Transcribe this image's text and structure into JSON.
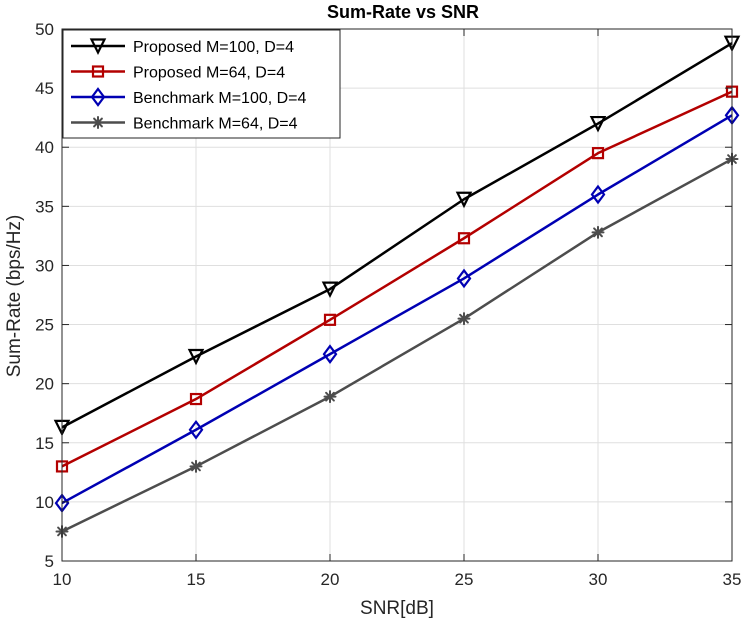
{
  "chart_data": {
    "type": "line",
    "title": "Sum-Rate vs SNR",
    "xlabel": "SNR[dB]",
    "ylabel": "Sum-Rate (bps/Hz)",
    "x": [
      10,
      15,
      20,
      25,
      30,
      35
    ],
    "xlim": [
      10,
      35
    ],
    "ylim": [
      5,
      50
    ],
    "xticks": [
      10,
      15,
      20,
      25,
      30,
      35
    ],
    "yticks": [
      5,
      10,
      15,
      20,
      25,
      30,
      35,
      40,
      45,
      50
    ],
    "grid": true,
    "legend_location": "top-left",
    "series": [
      {
        "name": "Proposed M=100, D=4",
        "color": "#000000",
        "marker": "triangle-down",
        "values": [
          16.3,
          22.3,
          28.0,
          35.6,
          42.0,
          48.8
        ]
      },
      {
        "name": "Proposed M=64, D=4",
        "color": "#b30000",
        "marker": "square",
        "values": [
          13.0,
          18.7,
          25.4,
          32.3,
          39.5,
          44.7
        ]
      },
      {
        "name": "Benchmark M=100, D=4",
        "color": "#0000b3",
        "marker": "diamond",
        "values": [
          9.9,
          16.1,
          22.5,
          28.9,
          36.0,
          42.7
        ]
      },
      {
        "name": "Benchmark M=64, D=4",
        "color": "#4d4d4d",
        "marker": "asterisk",
        "values": [
          7.5,
          13.0,
          18.9,
          25.5,
          32.8,
          39.0
        ]
      }
    ]
  }
}
